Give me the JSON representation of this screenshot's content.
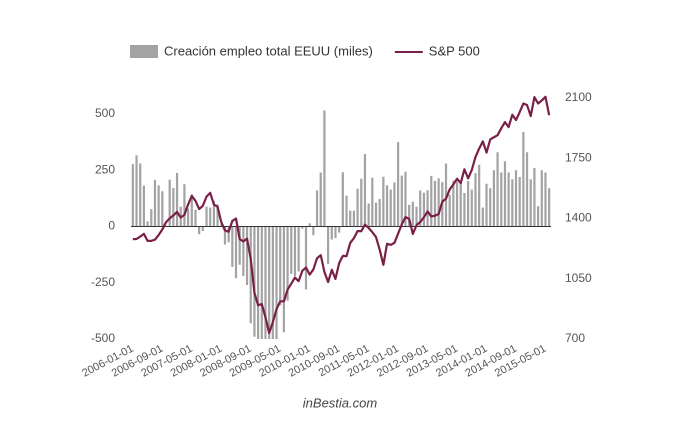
{
  "chart_data": {
    "type": "bar-line",
    "footer": "inBestia.com",
    "categories": [
      "2006-01-01",
      null,
      null,
      null,
      null,
      null,
      null,
      null,
      "2006-09-01",
      null,
      null,
      null,
      null,
      null,
      null,
      null,
      "2007-05-01",
      null,
      null,
      null,
      null,
      null,
      null,
      null,
      "2008-01-01",
      null,
      null,
      null,
      null,
      null,
      null,
      null,
      "2008-09-01",
      null,
      null,
      null,
      null,
      null,
      null,
      null,
      "2009-05-01",
      null,
      null,
      null,
      null,
      null,
      null,
      null,
      "2010-01-01",
      null,
      null,
      null,
      null,
      null,
      null,
      null,
      "2010-09-01",
      null,
      null,
      null,
      null,
      null,
      null,
      null,
      "2011-05-01",
      null,
      null,
      null,
      null,
      null,
      null,
      null,
      "2012-01-01",
      null,
      null,
      null,
      null,
      null,
      null,
      null,
      "2012-09-01",
      null,
      null,
      null,
      null,
      null,
      null,
      null,
      "2013-05-01",
      null,
      null,
      null,
      null,
      null,
      null,
      null,
      "2014-01-01",
      null,
      null,
      null,
      null,
      null,
      null,
      null,
      "2014-09-01",
      null,
      null,
      null,
      null,
      null,
      null,
      null,
      "2015-05-01",
      null
    ],
    "series": [
      {
        "name": "Creación empleo total EEUU (miles)",
        "type": "bar",
        "color": "#a3a3a3",
        "values": [
          277,
          316,
          280,
          182,
          23,
          77,
          207,
          183,
          157,
          4,
          208,
          171,
          238,
          88,
          188,
          80,
          143,
          75,
          -34,
          -20,
          88,
          84,
          114,
          98,
          10,
          -80,
          -70,
          -180,
          -230,
          -170,
          -220,
          -260,
          -430,
          -490,
          -500,
          -500,
          -500,
          -500,
          -500,
          -500,
          -350,
          -470,
          -330,
          -210,
          -220,
          -200,
          -10,
          -280,
          14,
          -39,
          160,
          240,
          516,
          -167,
          -58,
          -51,
          -27,
          241,
          137,
          71,
          70,
          168,
          212,
          322,
          102,
          217,
          106,
          122,
          221,
          183,
          164,
          196,
          375,
          226,
          243,
          96,
          110,
          88,
          160,
          150,
          161,
          225,
          203,
          214,
          197,
          280,
          141,
          203,
          199,
          201,
          149,
          202,
          164,
          237,
          274,
          84,
          190,
          170,
          250,
          330,
          240,
          290,
          240,
          210,
          250,
          220,
          420,
          330,
          210,
          260,
          90,
          250,
          240,
          170
        ]
      },
      {
        "name": "S&P 500",
        "type": "line",
        "axis": "y2",
        "color": "#7a1f48",
        "values": [
          1280,
          1281,
          1295,
          1311,
          1270,
          1270,
          1277,
          1304,
          1336,
          1378,
          1401,
          1418,
          1438,
          1406,
          1421,
          1482,
          1531,
          1503,
          1455,
          1474,
          1527,
          1549,
          1481,
          1468,
          1379,
          1331,
          1323,
          1386,
          1400,
          1280,
          1267,
          1283,
          1165,
          969,
          896,
          903,
          826,
          735,
          798,
          873,
          919,
          919,
          987,
          1021,
          1057,
          1036,
          1096,
          1115,
          1074,
          1104,
          1169,
          1187,
          1089,
          1031,
          1102,
          1049,
          1141,
          1183,
          1181,
          1258,
          1286,
          1327,
          1326,
          1364,
          1345,
          1321,
          1292,
          1219,
          1131,
          1253,
          1247,
          1258,
          1312,
          1366,
          1408,
          1398,
          1310,
          1362,
          1379,
          1407,
          1441,
          1412,
          1416,
          1426,
          1498,
          1515,
          1569,
          1598,
          1631,
          1606,
          1686,
          1633,
          1682,
          1757,
          1806,
          1848,
          1783,
          1859,
          1872,
          1884,
          1924,
          1960,
          1931,
          2003,
          1972,
          2018,
          2068,
          2059,
          1995,
          2105,
          2068,
          2086,
          2107,
          2000
        ]
      }
    ],
    "ylim": [
      -500,
      571
    ],
    "yticks": [
      500,
      250,
      0,
      -250,
      -500
    ],
    "y2lim": [
      700,
      2100
    ],
    "y2ticks": [
      2100,
      1750,
      1400,
      1050,
      700
    ],
    "legend": "top"
  }
}
